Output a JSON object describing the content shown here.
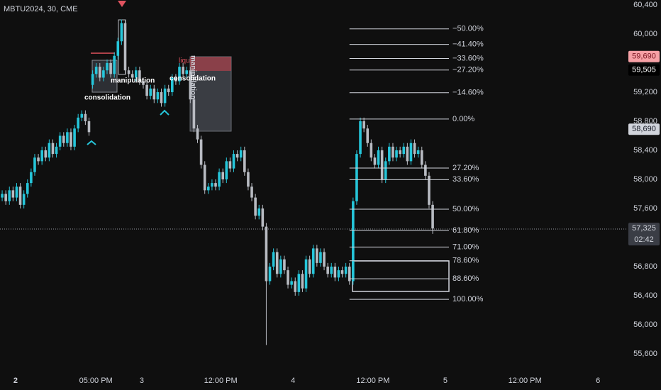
{
  "chart_data": {
    "type": "candlestick",
    "title": "MBTU2024, 30, CME",
    "up_color": "#26c6da",
    "down_color": "#b8bbc2",
    "ylim": [
      55395,
      60468
    ],
    "yticks": [
      {
        "value": 55600,
        "label": "55,600"
      },
      {
        "value": 56000,
        "label": "56,000"
      },
      {
        "value": 56400,
        "label": "56,400"
      },
      {
        "value": 56800,
        "label": "56,800"
      },
      {
        "value": 57600,
        "label": "57,600"
      },
      {
        "value": 58000,
        "label": "58,000"
      },
      {
        "value": 58400,
        "label": "58,400"
      },
      {
        "value": 58800,
        "label": "58,800"
      },
      {
        "value": 59200,
        "label": "59,200"
      },
      {
        "value": 60000,
        "label": "60,000"
      },
      {
        "value": 60400,
        "label": "60,400"
      }
    ],
    "xlim": [
      -0.6,
      172.9
    ],
    "xticks": [
      {
        "value": 3.7,
        "label": "2"
      },
      {
        "value": 25.9,
        "label": "05:00 PM"
      },
      {
        "value": 38.6,
        "label": "3"
      },
      {
        "value": 60.4,
        "label": "12:00 PM"
      },
      {
        "value": 80.4,
        "label": "4"
      },
      {
        "value": 102.5,
        "label": "12:00 PM"
      },
      {
        "value": 122.5,
        "label": "5"
      },
      {
        "value": 144.5,
        "label": "12:00 PM"
      },
      {
        "value": 164.7,
        "label": "6"
      }
    ],
    "open": [
      57750,
      57800,
      57700,
      57850,
      57750,
      57900,
      57650,
      57800,
      57950,
      58100,
      58300,
      58250,
      58400,
      58300,
      58500,
      58350,
      58450,
      58600,
      58500,
      58650,
      58450,
      58700,
      58850,
      58900,
      58800,
      59300,
      59450,
      59550,
      59400,
      59500,
      59600,
      59450,
      59700,
      59900,
      60150,
      59500,
      59450,
      59400,
      59500,
      59350,
      59300,
      59150,
      59250,
      59100,
      59200,
      59050,
      59250,
      59200,
      59400,
      59350,
      59550,
      59450,
      59500,
      59100,
      58700,
      58550,
      58200,
      57850,
      57900,
      57950,
      57900,
      58100,
      58000,
      58250,
      58150,
      58350,
      58300,
      58400,
      58100,
      57900,
      57750,
      57500,
      57600,
      57350,
      56600,
      56800,
      57000,
      56700,
      56900,
      56750,
      56550,
      56600,
      56450,
      56700,
      56500,
      56900,
      56700,
      57050,
      56850,
      57000,
      56800,
      56700,
      56800,
      56650,
      56750,
      56700,
      56800,
      56600,
      57700,
      58350,
      58800,
      58700,
      58500,
      58300,
      58200,
      58400,
      58000,
      58250,
      58450,
      58300,
      58400,
      58350,
      58450,
      58250,
      58500,
      58350,
      58400,
      58200,
      58050,
      57650
    ],
    "high": [
      57850,
      57850,
      57900,
      57900,
      57950,
      57950,
      57850,
      58000,
      58150,
      58350,
      58350,
      58450,
      58450,
      58550,
      58550,
      58500,
      58650,
      58650,
      58700,
      58700,
      58750,
      58900,
      58950,
      58950,
      58850,
      59500,
      59600,
      59600,
      59550,
      59650,
      59650,
      59750,
      59950,
      60200,
      60200,
      59550,
      59500,
      59550,
      59550,
      59400,
      59350,
      59300,
      59300,
      59250,
      59250,
      59300,
      59300,
      59450,
      59450,
      59600,
      59600,
      59550,
      59550,
      59150,
      58750,
      58600,
      58250,
      57950,
      58000,
      58000,
      58150,
      58150,
      58300,
      58300,
      58400,
      58400,
      58450,
      58450,
      58150,
      57950,
      57800,
      57650,
      57650,
      57400,
      56850,
      57050,
      57050,
      56950,
      56950,
      56800,
      56650,
      56650,
      56750,
      56750,
      56950,
      56950,
      57100,
      57100,
      57050,
      57050,
      56850,
      56850,
      56850,
      56800,
      56800,
      56850,
      56850,
      57750,
      58400,
      58850,
      58850,
      58750,
      58550,
      58350,
      58450,
      58450,
      58300,
      58500,
      58500,
      58450,
      58450,
      58500,
      58500,
      58550,
      58550,
      58450,
      58450,
      58250,
      58100,
      57700
    ],
    "low": [
      57700,
      57650,
      57650,
      57700,
      57700,
      57600,
      57600,
      57750,
      57900,
      58050,
      58200,
      58200,
      58250,
      58250,
      58300,
      58300,
      58400,
      58450,
      58450,
      58400,
      58400,
      58650,
      58800,
      58750,
      58600,
      59250,
      59400,
      59350,
      59350,
      59450,
      59400,
      59400,
      59650,
      59850,
      59450,
      59400,
      59350,
      59350,
      59300,
      59250,
      59100,
      59100,
      59050,
      59050,
      59000,
      59000,
      59150,
      59150,
      59300,
      59300,
      59400,
      59400,
      59050,
      58650,
      58500,
      58150,
      57800,
      57800,
      57850,
      57850,
      57850,
      57950,
      57950,
      58100,
      58100,
      58250,
      58250,
      58050,
      57850,
      57700,
      57450,
      57450,
      57300,
      55720,
      56550,
      56750,
      56650,
      56650,
      56700,
      56500,
      56500,
      56400,
      56400,
      56450,
      56450,
      56650,
      56650,
      56800,
      56800,
      56750,
      56650,
      56650,
      56600,
      56600,
      56650,
      56650,
      56550,
      56550,
      57650,
      58300,
      58650,
      58450,
      58250,
      58150,
      58150,
      57950,
      57950,
      58200,
      58250,
      58250,
      58300,
      58300,
      58200,
      58200,
      58300,
      58300,
      58150,
      58000,
      57600,
      57250
    ],
    "close": [
      57800,
      57700,
      57850,
      57750,
      57900,
      57650,
      57800,
      57950,
      58100,
      58300,
      58250,
      58400,
      58300,
      58500,
      58350,
      58450,
      58600,
      58500,
      58650,
      58450,
      58700,
      58850,
      58900,
      58800,
      58650,
      59450,
      59550,
      59400,
      59500,
      59600,
      59450,
      59700,
      59900,
      60150,
      59500,
      59450,
      59400,
      59500,
      59350,
      59300,
      59150,
      59250,
      59100,
      59200,
      59050,
      59250,
      59200,
      59400,
      59350,
      59550,
      59450,
      59500,
      59100,
      58700,
      58550,
      58200,
      57850,
      57900,
      57950,
      57900,
      58100,
      58000,
      58250,
      58150,
      58350,
      58300,
      58400,
      58100,
      57900,
      57750,
      57500,
      57600,
      57350,
      56600,
      56800,
      57000,
      56700,
      56900,
      56750,
      56550,
      56600,
      56450,
      56700,
      56500,
      56900,
      56700,
      57050,
      56850,
      57000,
      56800,
      56700,
      56800,
      56650,
      56750,
      56700,
      56800,
      56600,
      57700,
      58350,
      58800,
      58700,
      58500,
      58300,
      58200,
      58400,
      58000,
      58250,
      58450,
      58300,
      58400,
      58350,
      58450,
      58250,
      58500,
      58350,
      58400,
      58200,
      58050,
      57650,
      57325
    ],
    "fib": {
      "price_0": 58830,
      "price_100": 56350,
      "x_range": [
        96,
        123.5
      ],
      "levels": [
        {
          "value": -50,
          "label": "−50.00%"
        },
        {
          "value": -41.4,
          "label": "−41.40%"
        },
        {
          "value": -33.6,
          "label": "−33.60%"
        },
        {
          "value": -27.2,
          "label": "−27.20%"
        },
        {
          "value": -14.6,
          "label": "−14.60%"
        },
        {
          "value": 0,
          "label": "0.00%"
        },
        {
          "value": 27.2,
          "label": "27.20%"
        },
        {
          "value": 33.6,
          "label": "33.60%"
        },
        {
          "value": 50,
          "label": "50.00%"
        },
        {
          "value": 61.8,
          "label": "61.80%"
        },
        {
          "value": 71,
          "label": "71.00%"
        },
        {
          "value": 78.6,
          "label": "78.60%"
        },
        {
          "value": 88.6,
          "label": "88.60%"
        },
        {
          "value": 100,
          "label": "100.00%"
        }
      ]
    },
    "price_labels": [
      {
        "value": 59690,
        "label": "59,690",
        "bg": "#f7a1a6",
        "fg": "#7a1520"
      },
      {
        "value": 59505,
        "label": "59,505",
        "bg": "#000000",
        "fg": "#ffffff"
      },
      {
        "value": 58690,
        "label": "58,690",
        "bg": "#d1d4dc",
        "fg": "#131722"
      },
      {
        "value": 57325,
        "label": "57,325",
        "bg": "#3a3d45",
        "fg": "#d1d4dc"
      }
    ],
    "countdown": "02:42",
    "annotations": [
      "manipulation",
      "consolidation",
      "liqu",
      "manipulation",
      "consolidation"
    ]
  }
}
